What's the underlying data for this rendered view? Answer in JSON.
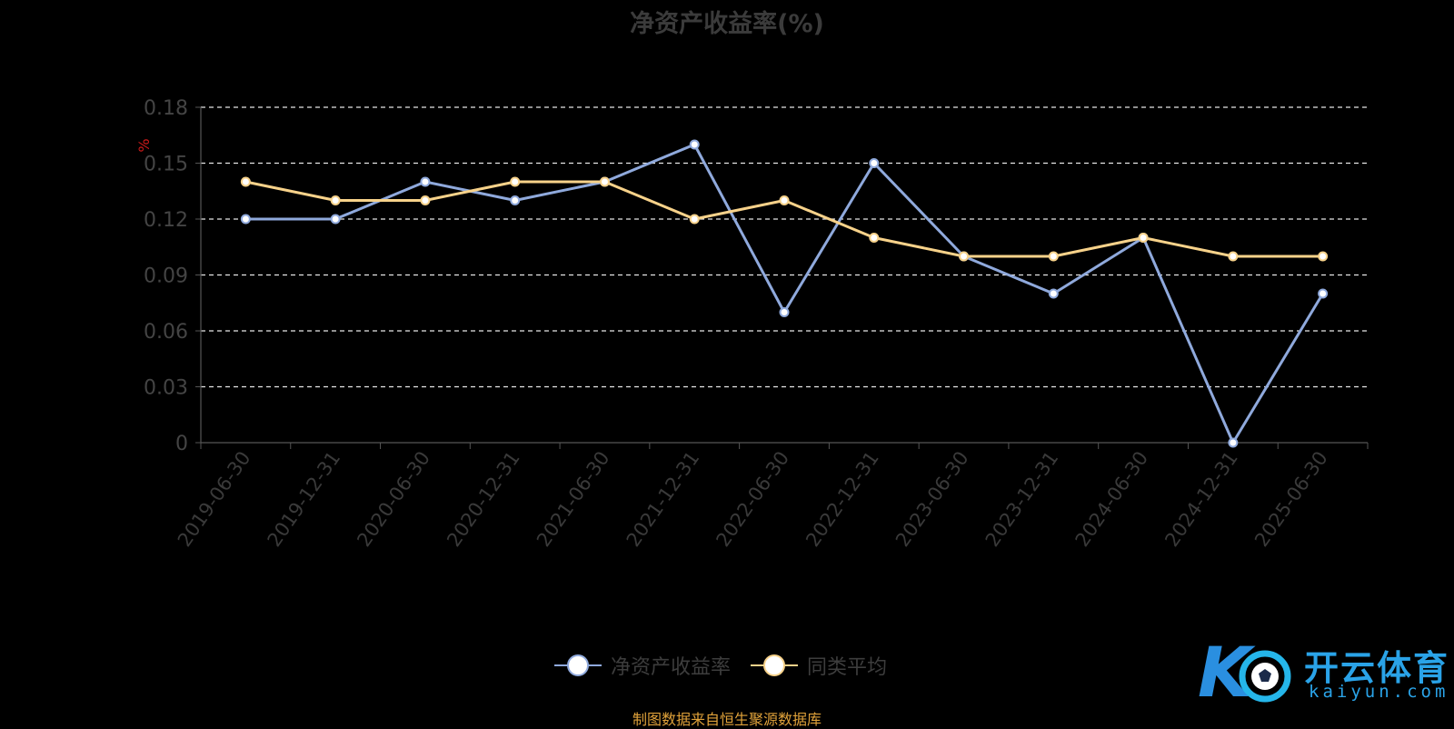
{
  "chart_data": {
    "type": "line",
    "title": "净资产收益率(%)",
    "ylabel": "%",
    "ylim": [
      0,
      0.18
    ],
    "yticks": [
      "0",
      "0.03",
      "0.06",
      "0.09",
      "0.12",
      "0.15",
      "0.18"
    ],
    "grid": true,
    "legend_position": "bottom",
    "categories": [
      "2019-06-30",
      "2019-12-31",
      "2020-06-30",
      "2020-12-31",
      "2021-06-30",
      "2021-12-31",
      "2022-06-30",
      "2022-12-31",
      "2023-06-30",
      "2023-12-31",
      "2024-06-30",
      "2024-12-31",
      "2025-06-30"
    ],
    "series": [
      {
        "name": "净资产收益率",
        "color": "#8fa9dc",
        "values": [
          0.12,
          0.12,
          0.14,
          0.13,
          0.14,
          0.16,
          0.07,
          0.15,
          0.1,
          0.08,
          0.11,
          0.0,
          0.08
        ]
      },
      {
        "name": "同类平均",
        "color": "#f7d28a",
        "values": [
          0.14,
          0.13,
          0.13,
          0.14,
          0.14,
          0.12,
          0.13,
          0.11,
          0.1,
          0.1,
          0.11,
          0.1,
          0.1
        ]
      }
    ]
  },
  "source_note": "制图数据来自恒生聚源数据库",
  "watermark": {
    "text": "开云体育",
    "sub": "kaiyun.com",
    "color": "#2aa3e8"
  }
}
